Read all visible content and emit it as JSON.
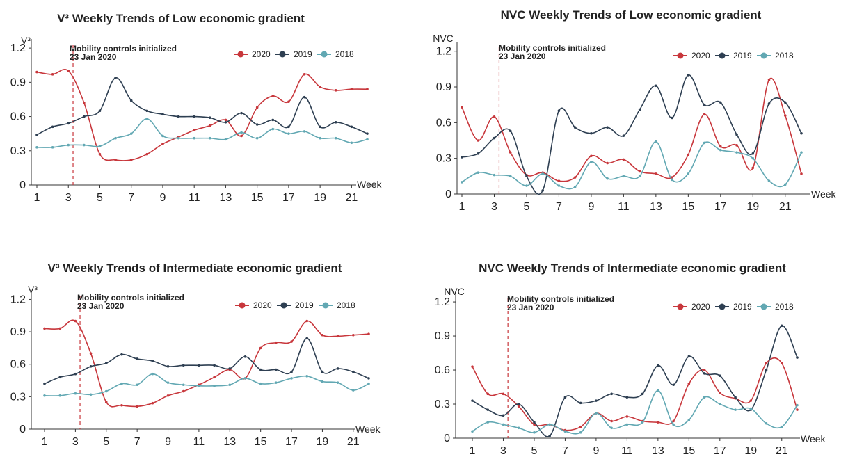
{
  "chart_data": [
    {
      "type": "line",
      "title": "V³ Weekly Trends of Low economic gradient",
      "ylabel": "V³",
      "xlabel": "Week",
      "ylim": [
        0,
        1.28
      ],
      "yticks": [
        0,
        0.3,
        0.6,
        0.9,
        1.2
      ],
      "ytick_labels": [
        "0",
        "0.3",
        "0.6",
        "0.9",
        "1.2"
      ],
      "xticks": [
        1,
        3,
        5,
        7,
        9,
        11,
        13,
        15,
        17,
        19,
        21
      ],
      "annotation": {
        "x": 3.3,
        "line1": "Mobility controls initialized",
        "line2": "23 Jan 2020"
      },
      "x": [
        1,
        2,
        3,
        4,
        5,
        6,
        7,
        8,
        9,
        10,
        11,
        12,
        13,
        14,
        15,
        16,
        17,
        18,
        19,
        20,
        21,
        22
      ],
      "series": [
        {
          "name": "2020",
          "color": "#c8373c",
          "values": [
            0.99,
            0.97,
            1.0,
            0.72,
            0.27,
            0.22,
            0.22,
            0.27,
            0.36,
            0.42,
            0.48,
            0.52,
            0.57,
            0.43,
            0.68,
            0.78,
            0.73,
            0.97,
            0.86,
            0.83,
            0.84,
            0.84
          ]
        },
        {
          "name": "2019",
          "color": "#2e3f52",
          "values": [
            0.44,
            0.51,
            0.54,
            0.6,
            0.65,
            0.94,
            0.74,
            0.65,
            0.62,
            0.6,
            0.6,
            0.59,
            0.55,
            0.63,
            0.53,
            0.57,
            0.51,
            0.77,
            0.51,
            0.55,
            0.51,
            0.45
          ]
        },
        {
          "name": "2018",
          "color": "#62a8b3",
          "values": [
            0.33,
            0.33,
            0.35,
            0.35,
            0.34,
            0.41,
            0.45,
            0.58,
            0.43,
            0.41,
            0.41,
            0.41,
            0.4,
            0.46,
            0.41,
            0.49,
            0.45,
            0.47,
            0.41,
            0.41,
            0.37,
            0.4
          ]
        }
      ]
    },
    {
      "type": "line",
      "title": "NVC Weekly Trends of Low economic gradient",
      "ylabel": "NVC",
      "xlabel": "Week",
      "ylim": [
        0,
        1.28
      ],
      "yticks": [
        0,
        0.3,
        0.6,
        0.9,
        1.2
      ],
      "ytick_labels": [
        "0",
        "0.3",
        "0.6",
        "0.9",
        "1.2"
      ],
      "xticks": [
        1,
        3,
        5,
        7,
        9,
        11,
        13,
        15,
        17,
        19,
        21
      ],
      "annotation": {
        "x": 3.3,
        "line1": "Mobility controls initialized",
        "line2": "23 Jan 2020"
      },
      "x": [
        1,
        2,
        3,
        4,
        5,
        6,
        7,
        8,
        9,
        10,
        11,
        12,
        13,
        14,
        15,
        16,
        17,
        18,
        19,
        20,
        21,
        22
      ],
      "series": [
        {
          "name": "2020",
          "color": "#c8373c",
          "values": [
            0.73,
            0.45,
            0.65,
            0.35,
            0.16,
            0.18,
            0.11,
            0.14,
            0.32,
            0.26,
            0.29,
            0.19,
            0.17,
            0.14,
            0.33,
            0.67,
            0.4,
            0.41,
            0.22,
            0.96,
            0.66,
            0.17
          ]
        },
        {
          "name": "2019",
          "color": "#2e3f52",
          "values": [
            0.31,
            0.34,
            0.47,
            0.53,
            0.15,
            0.03,
            0.7,
            0.56,
            0.51,
            0.56,
            0.49,
            0.71,
            0.91,
            0.64,
            1.0,
            0.75,
            0.77,
            0.5,
            0.34,
            0.76,
            0.77,
            0.51
          ]
        },
        {
          "name": "2018",
          "color": "#62a8b3",
          "values": [
            0.1,
            0.18,
            0.16,
            0.15,
            0.07,
            0.17,
            0.07,
            0.06,
            0.27,
            0.13,
            0.15,
            0.15,
            0.44,
            0.12,
            0.17,
            0.43,
            0.37,
            0.35,
            0.3,
            0.11,
            0.08,
            0.35
          ]
        }
      ]
    },
    {
      "type": "line",
      "title": "V³ Weekly Trends of Intermediate economic gradient",
      "ylabel": "V³",
      "xlabel": "Week",
      "ylim": [
        0,
        1.28
      ],
      "yticks": [
        0,
        0.3,
        0.6,
        0.9,
        1.2
      ],
      "ytick_labels": [
        "0",
        "0.3",
        "0.6",
        "0.9",
        "1.2"
      ],
      "xticks": [
        1,
        3,
        5,
        7,
        9,
        11,
        13,
        15,
        17,
        19,
        21
      ],
      "annotation": {
        "x": 3.3,
        "line1": "Mobility controls initialized",
        "line2": "23 Jan 2020"
      },
      "x": [
        1,
        2,
        3,
        4,
        5,
        6,
        7,
        8,
        9,
        10,
        11,
        12,
        13,
        14,
        15,
        16,
        17,
        18,
        19,
        20,
        21,
        22
      ],
      "series": [
        {
          "name": "2020",
          "color": "#c8373c",
          "values": [
            0.93,
            0.93,
            1.0,
            0.7,
            0.25,
            0.22,
            0.21,
            0.24,
            0.31,
            0.35,
            0.41,
            0.48,
            0.55,
            0.47,
            0.75,
            0.8,
            0.81,
            1.0,
            0.87,
            0.86,
            0.87,
            0.88
          ]
        },
        {
          "name": "2019",
          "color": "#2e3f52",
          "values": [
            0.42,
            0.48,
            0.51,
            0.58,
            0.61,
            0.69,
            0.65,
            0.63,
            0.58,
            0.59,
            0.59,
            0.59,
            0.56,
            0.67,
            0.55,
            0.55,
            0.53,
            0.84,
            0.53,
            0.56,
            0.53,
            0.47
          ]
        },
        {
          "name": "2018",
          "color": "#62a8b3",
          "values": [
            0.31,
            0.31,
            0.33,
            0.32,
            0.35,
            0.42,
            0.41,
            0.51,
            0.43,
            0.41,
            0.4,
            0.4,
            0.41,
            0.47,
            0.42,
            0.43,
            0.47,
            0.49,
            0.44,
            0.43,
            0.36,
            0.42
          ]
        }
      ]
    },
    {
      "type": "line",
      "title": "NVC Weekly Trends of Intermediate economic gradient",
      "ylabel": "NVC",
      "xlabel": "Week",
      "ylim": [
        0,
        1.28
      ],
      "yticks": [
        0,
        0.3,
        0.6,
        0.9,
        1.2
      ],
      "ytick_labels": [
        "0",
        "0.3",
        "0.6",
        "0.9",
        "1.2"
      ],
      "xticks": [
        1,
        3,
        5,
        7,
        9,
        11,
        13,
        15,
        17,
        19,
        21
      ],
      "annotation": {
        "x": 3.3,
        "line1": "Mobility controls initialized",
        "line2": "23 Jan 2020"
      },
      "x": [
        1,
        2,
        3,
        4,
        5,
        6,
        7,
        8,
        9,
        10,
        11,
        12,
        13,
        14,
        15,
        16,
        17,
        18,
        19,
        20,
        21,
        22
      ],
      "series": [
        {
          "name": "2020",
          "color": "#c8373c",
          "values": [
            0.63,
            0.39,
            0.39,
            0.28,
            0.12,
            0.12,
            0.07,
            0.1,
            0.22,
            0.15,
            0.19,
            0.15,
            0.14,
            0.15,
            0.48,
            0.6,
            0.4,
            0.35,
            0.33,
            0.66,
            0.66,
            0.25
          ]
        },
        {
          "name": "2019",
          "color": "#2e3f52",
          "values": [
            0.33,
            0.25,
            0.2,
            0.3,
            0.14,
            0.02,
            0.36,
            0.31,
            0.33,
            0.39,
            0.36,
            0.39,
            0.64,
            0.47,
            0.72,
            0.57,
            0.55,
            0.36,
            0.25,
            0.6,
            0.99,
            0.71
          ]
        },
        {
          "name": "2018",
          "color": "#62a8b3",
          "values": [
            0.06,
            0.14,
            0.12,
            0.09,
            0.05,
            0.12,
            0.06,
            0.05,
            0.22,
            0.09,
            0.12,
            0.14,
            0.42,
            0.12,
            0.16,
            0.36,
            0.3,
            0.25,
            0.26,
            0.13,
            0.1,
            0.29
          ]
        }
      ]
    }
  ]
}
